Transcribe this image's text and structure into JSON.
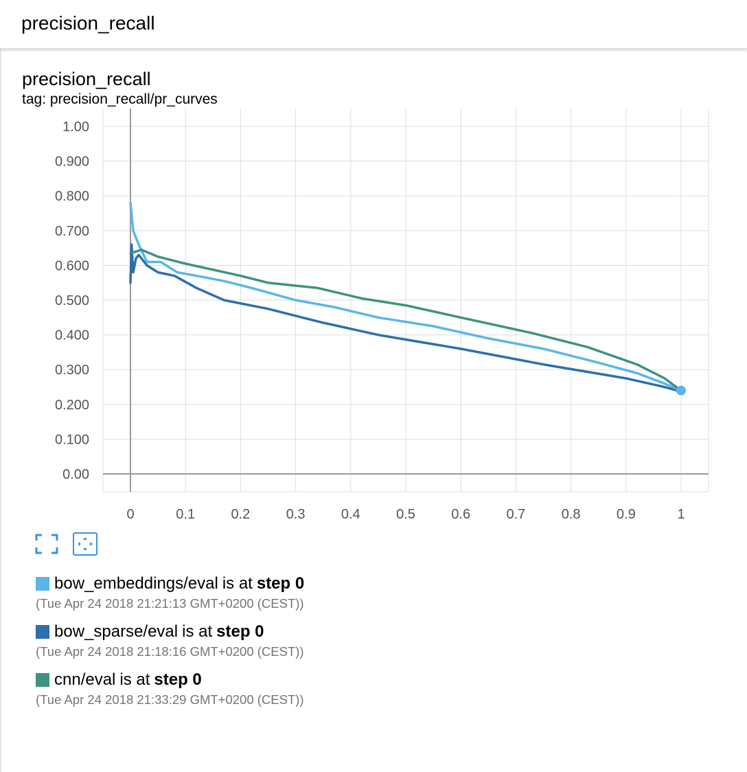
{
  "header": {
    "title": "precision_recall"
  },
  "card": {
    "title": "precision_recall",
    "tag": "tag: precision_recall/pr_curves"
  },
  "controls": {
    "expand_icon": "expand-icon",
    "fit_domain_icon": "fit-domain-icon",
    "accent_color": "#3f8ee6"
  },
  "chart_data": {
    "type": "line",
    "title": "",
    "xlabel": "",
    "ylabel": "",
    "xlim": [
      -0.05,
      1.05
    ],
    "ylim": [
      -0.05,
      1.0
    ],
    "x_ticks": [
      0,
      0.1,
      0.2,
      0.3,
      0.4,
      0.5,
      0.6,
      0.7,
      0.8,
      0.9,
      1
    ],
    "x_tick_labels": [
      "0",
      "0.1",
      "0.2",
      "0.3",
      "0.4",
      "0.5",
      "0.6",
      "0.7",
      "0.8",
      "0.9",
      "1"
    ],
    "y_ticks": [
      0,
      0.1,
      0.2,
      0.3,
      0.4,
      0.5,
      0.6,
      0.7,
      0.8,
      0.9,
      1.0
    ],
    "y_tick_labels": [
      "0.00",
      "0.100",
      "0.200",
      "0.300",
      "0.400",
      "0.500",
      "0.600",
      "0.700",
      "0.800",
      "0.900",
      "1.00"
    ],
    "grid": true,
    "series": [
      {
        "name": "bow_embeddings/eval",
        "color": "#5ab5e9",
        "points": [
          [
            0.0,
            0.78
          ],
          [
            0.005,
            0.7
          ],
          [
            0.015,
            0.66
          ],
          [
            0.03,
            0.61
          ],
          [
            0.055,
            0.61
          ],
          [
            0.085,
            0.58
          ],
          [
            0.12,
            0.57
          ],
          [
            0.17,
            0.555
          ],
          [
            0.22,
            0.535
          ],
          [
            0.3,
            0.5
          ],
          [
            0.37,
            0.48
          ],
          [
            0.45,
            0.45
          ],
          [
            0.55,
            0.425
          ],
          [
            0.65,
            0.39
          ],
          [
            0.75,
            0.36
          ],
          [
            0.85,
            0.32
          ],
          [
            0.92,
            0.29
          ],
          [
            0.97,
            0.26
          ],
          [
            1.0,
            0.24
          ]
        ]
      },
      {
        "name": "bow_sparse/eval",
        "color": "#2e6faf",
        "points": [
          [
            0.0,
            0.55
          ],
          [
            0.002,
            0.66
          ],
          [
            0.005,
            0.58
          ],
          [
            0.01,
            0.62
          ],
          [
            0.015,
            0.63
          ],
          [
            0.03,
            0.6
          ],
          [
            0.05,
            0.58
          ],
          [
            0.08,
            0.57
          ],
          [
            0.12,
            0.535
          ],
          [
            0.17,
            0.5
          ],
          [
            0.25,
            0.475
          ],
          [
            0.35,
            0.435
          ],
          [
            0.45,
            0.4
          ],
          [
            0.6,
            0.36
          ],
          [
            0.75,
            0.315
          ],
          [
            0.9,
            0.275
          ],
          [
            0.97,
            0.25
          ],
          [
            1.0,
            0.237
          ]
        ]
      },
      {
        "name": "cnn/eval",
        "color": "#3e9380",
        "points": [
          [
            0.0,
            0.635
          ],
          [
            0.01,
            0.64
          ],
          [
            0.02,
            0.645
          ],
          [
            0.05,
            0.625
          ],
          [
            0.1,
            0.605
          ],
          [
            0.2,
            0.57
          ],
          [
            0.25,
            0.55
          ],
          [
            0.34,
            0.535
          ],
          [
            0.42,
            0.505
          ],
          [
            0.5,
            0.485
          ],
          [
            0.6,
            0.45
          ],
          [
            0.73,
            0.405
          ],
          [
            0.83,
            0.365
          ],
          [
            0.92,
            0.315
          ],
          [
            0.97,
            0.275
          ],
          [
            1.0,
            0.24
          ]
        ]
      }
    ],
    "end_marker": {
      "x": 1.0,
      "y": 0.24,
      "color": "#5ab5e9"
    }
  },
  "legend": {
    "runs": [
      {
        "name": "bow_embeddings/eval",
        "color": "#5ab5e9",
        "text": "is at",
        "step": "step 0",
        "time": "(Tue Apr 24 2018 21:21:13 GMT+0200 (CEST))"
      },
      {
        "name": "bow_sparse/eval",
        "color": "#2e6faf",
        "text": "is at",
        "step": "step 0",
        "time": "(Tue Apr 24 2018 21:18:16 GMT+0200 (CEST))"
      },
      {
        "name": "cnn/eval",
        "color": "#3e9380",
        "text": "is at",
        "step": "step 0",
        "time": "(Tue Apr 24 2018 21:33:29 GMT+0200 (CEST))"
      }
    ]
  }
}
